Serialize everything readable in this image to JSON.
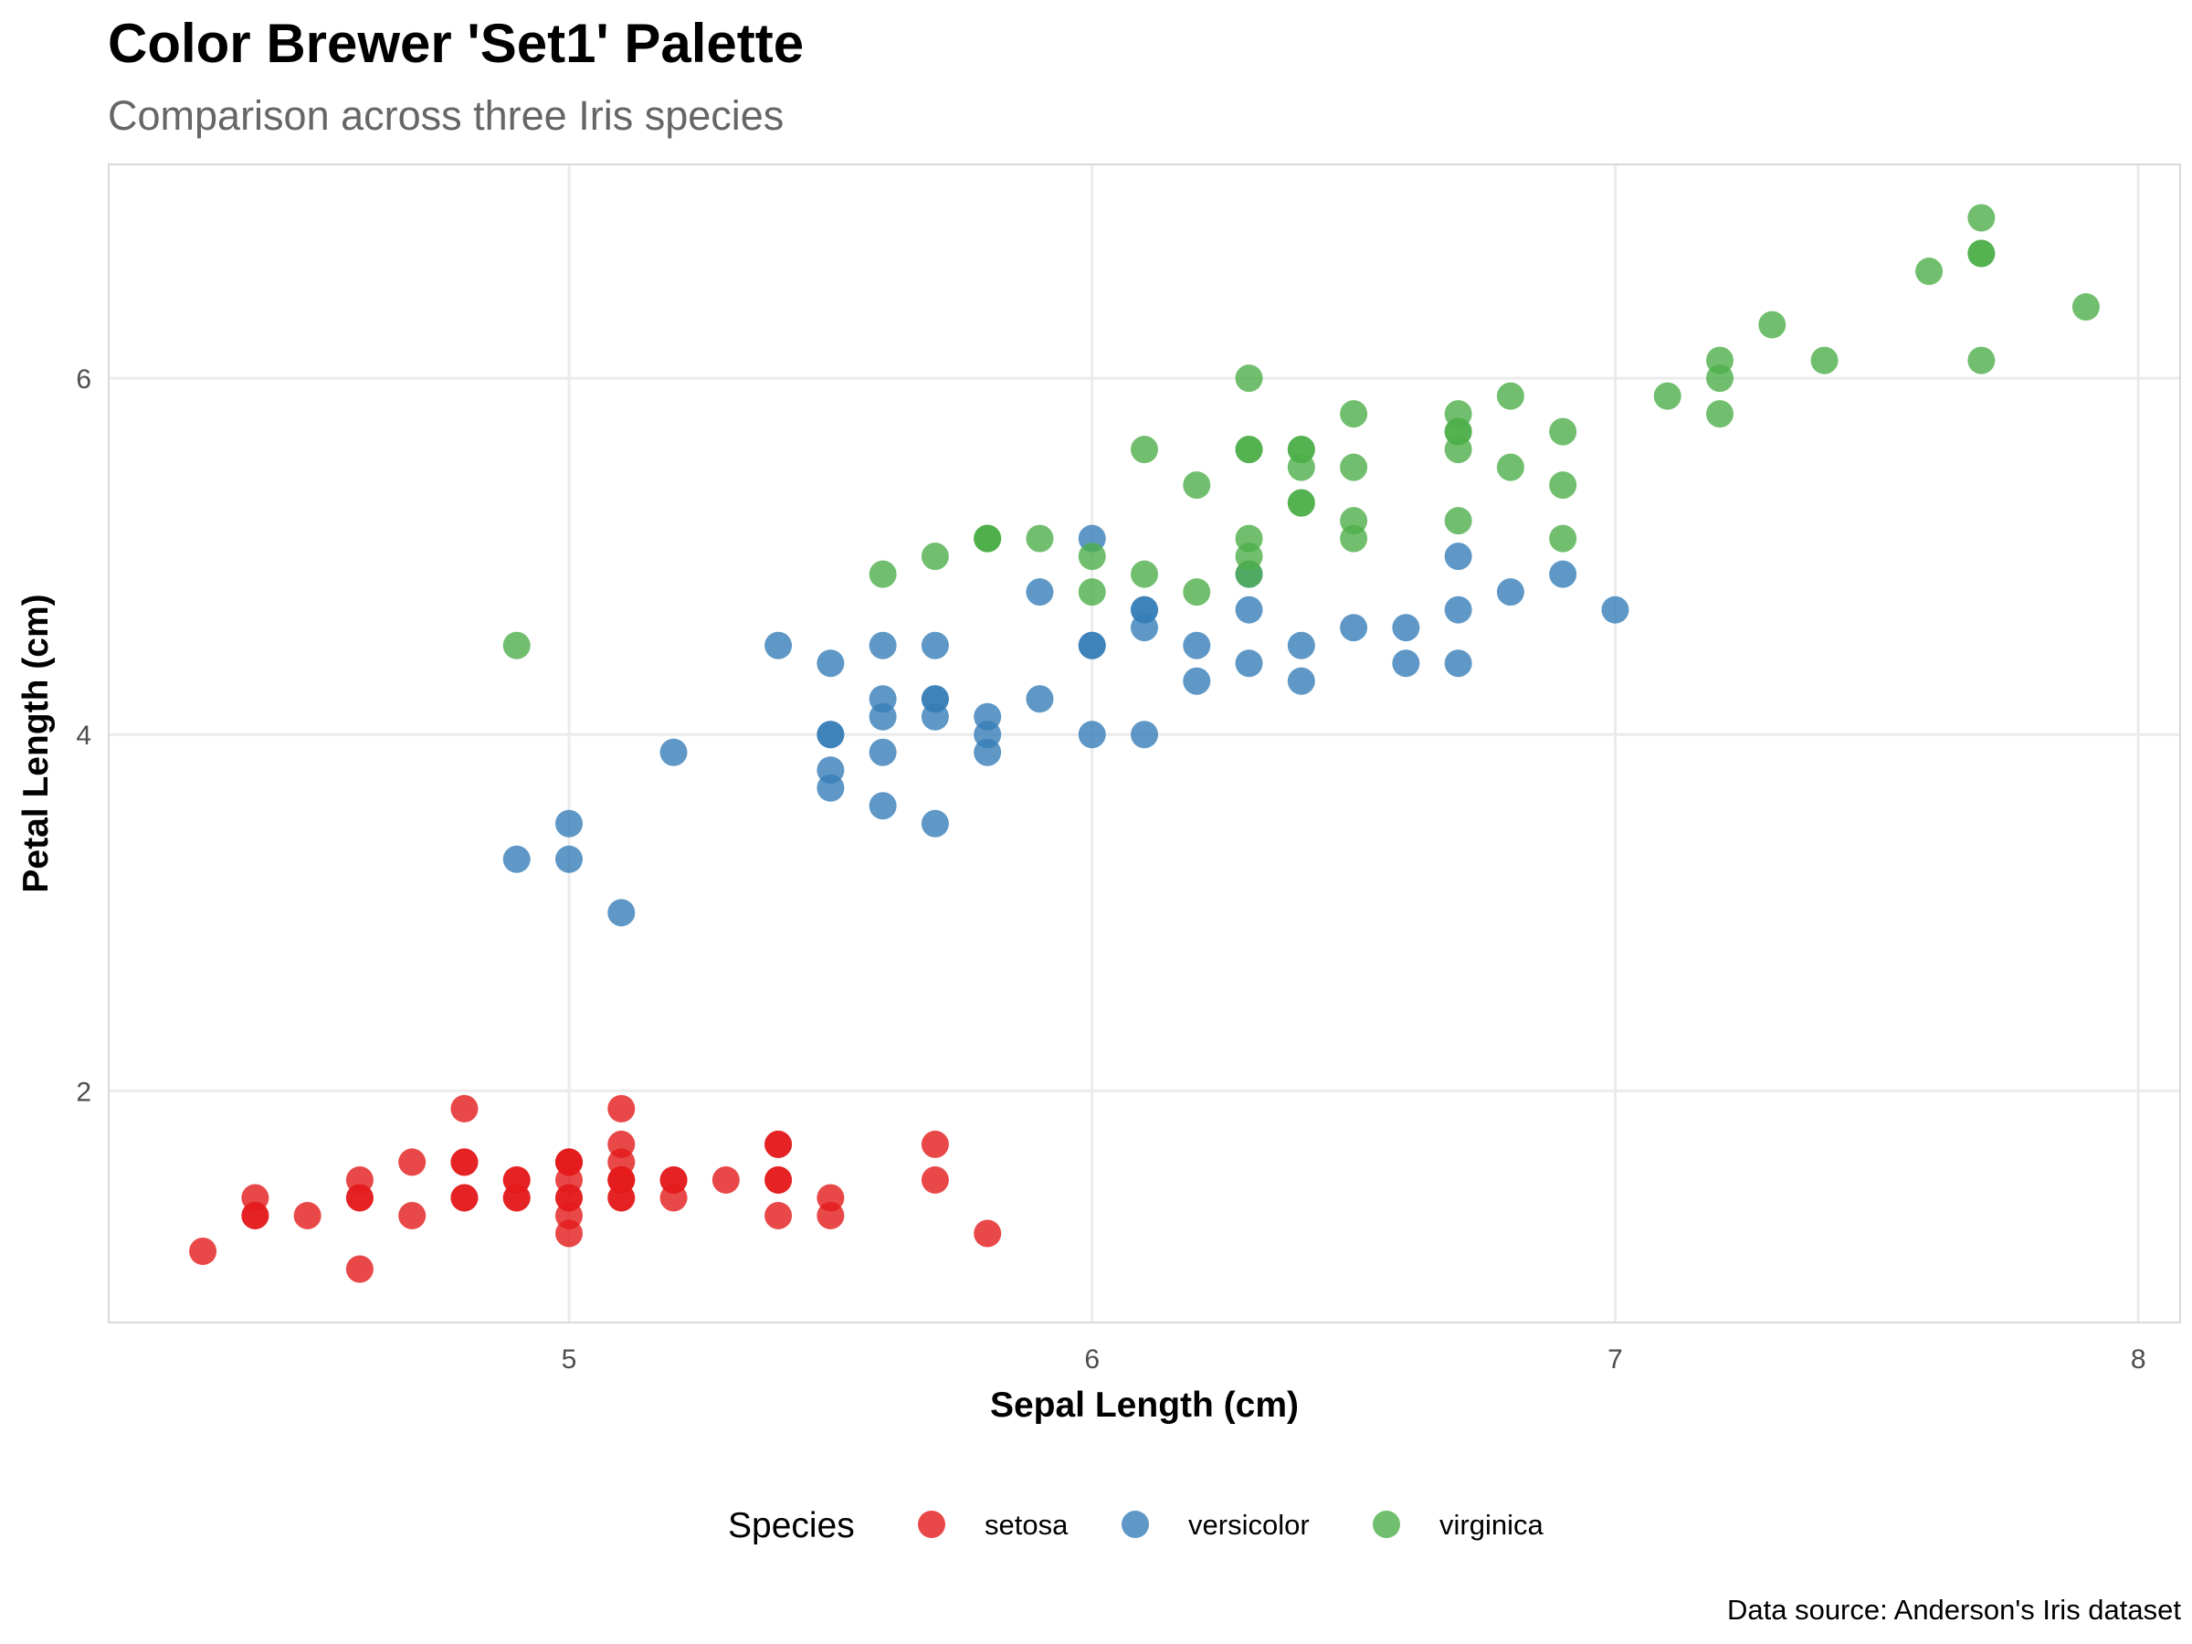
{
  "chart_data": {
    "type": "scatter",
    "title": "Color Brewer 'Set1' Palette",
    "subtitle": "Comparison across three Iris species",
    "xlabel": "Sepal Length (cm)",
    "ylabel": "Petal Length (cm)",
    "caption": "Data source: Anderson's Iris dataset",
    "xlim": [
      4.12,
      8.08
    ],
    "ylim": [
      0.7,
      7.2
    ],
    "x_ticks": [
      5,
      6,
      7,
      8
    ],
    "x_tick_labels": [
      "5",
      "6",
      "7",
      "8"
    ],
    "y_ticks": [
      2,
      4,
      6
    ],
    "y_tick_labels": [
      "2",
      "4",
      "6"
    ],
    "grid": true,
    "legend": {
      "title": "Species",
      "position": "bottom"
    },
    "series": [
      {
        "name": "setosa",
        "color": "#e41a1c",
        "points": [
          [
            5.1,
            1.4
          ],
          [
            4.9,
            1.4
          ],
          [
            4.7,
            1.3
          ],
          [
            4.6,
            1.5
          ],
          [
            5.0,
            1.4
          ],
          [
            5.4,
            1.7
          ],
          [
            4.6,
            1.4
          ],
          [
            5.0,
            1.5
          ],
          [
            4.4,
            1.4
          ],
          [
            4.9,
            1.5
          ],
          [
            5.4,
            1.5
          ],
          [
            4.8,
            1.6
          ],
          [
            4.8,
            1.4
          ],
          [
            4.3,
            1.1
          ],
          [
            5.8,
            1.2
          ],
          [
            5.7,
            1.5
          ],
          [
            5.4,
            1.3
          ],
          [
            5.1,
            1.4
          ],
          [
            5.7,
            1.7
          ],
          [
            5.1,
            1.5
          ],
          [
            5.4,
            1.7
          ],
          [
            5.1,
            1.5
          ],
          [
            4.6,
            1.0
          ],
          [
            5.1,
            1.7
          ],
          [
            4.8,
            1.9
          ],
          [
            5.0,
            1.6
          ],
          [
            5.0,
            1.6
          ],
          [
            5.2,
            1.5
          ],
          [
            5.2,
            1.4
          ],
          [
            4.7,
            1.6
          ],
          [
            4.8,
            1.6
          ],
          [
            5.4,
            1.5
          ],
          [
            5.2,
            1.5
          ],
          [
            5.5,
            1.4
          ],
          [
            4.9,
            1.5
          ],
          [
            5.0,
            1.2
          ],
          [
            5.5,
            1.3
          ],
          [
            4.9,
            1.4
          ],
          [
            4.4,
            1.3
          ],
          [
            5.1,
            1.5
          ],
          [
            5.0,
            1.3
          ],
          [
            4.5,
            1.3
          ],
          [
            4.4,
            1.3
          ],
          [
            5.0,
            1.6
          ],
          [
            5.1,
            1.9
          ],
          [
            4.8,
            1.4
          ],
          [
            5.1,
            1.6
          ],
          [
            4.6,
            1.4
          ],
          [
            5.3,
            1.5
          ],
          [
            5.0,
            1.4
          ]
        ]
      },
      {
        "name": "versicolor",
        "color": "#377eb8",
        "points": [
          [
            7.0,
            4.7
          ],
          [
            6.4,
            4.5
          ],
          [
            6.9,
            4.9
          ],
          [
            5.5,
            4.0
          ],
          [
            6.5,
            4.6
          ],
          [
            5.7,
            4.5
          ],
          [
            6.3,
            4.7
          ],
          [
            4.9,
            3.3
          ],
          [
            6.6,
            4.6
          ],
          [
            5.2,
            3.9
          ],
          [
            5.0,
            3.5
          ],
          [
            5.9,
            4.2
          ],
          [
            6.0,
            4.0
          ],
          [
            6.1,
            4.7
          ],
          [
            5.6,
            3.6
          ],
          [
            6.7,
            4.4
          ],
          [
            5.6,
            4.5
          ],
          [
            5.8,
            4.1
          ],
          [
            6.2,
            4.5
          ],
          [
            5.6,
            3.9
          ],
          [
            5.9,
            4.8
          ],
          [
            6.1,
            4.0
          ],
          [
            6.3,
            4.9
          ],
          [
            6.1,
            4.7
          ],
          [
            6.4,
            4.3
          ],
          [
            6.6,
            4.4
          ],
          [
            6.8,
            4.8
          ],
          [
            6.7,
            5.0
          ],
          [
            6.0,
            4.5
          ],
          [
            5.7,
            3.5
          ],
          [
            5.5,
            3.8
          ],
          [
            5.5,
            3.7
          ],
          [
            5.8,
            3.9
          ],
          [
            6.0,
            5.1
          ],
          [
            5.4,
            4.5
          ],
          [
            6.0,
            4.5
          ],
          [
            6.7,
            4.7
          ],
          [
            6.3,
            4.4
          ],
          [
            5.6,
            4.1
          ],
          [
            5.5,
            4.0
          ],
          [
            5.5,
            4.4
          ],
          [
            6.1,
            4.6
          ],
          [
            5.8,
            4.0
          ],
          [
            5.0,
            3.3
          ],
          [
            5.6,
            4.2
          ],
          [
            5.7,
            4.2
          ],
          [
            5.7,
            4.2
          ],
          [
            6.2,
            4.3
          ],
          [
            5.1,
            3.0
          ],
          [
            5.7,
            4.1
          ]
        ]
      },
      {
        "name": "virginica",
        "color": "#4daf4a",
        "points": [
          [
            6.3,
            6.0
          ],
          [
            5.8,
            5.1
          ],
          [
            7.1,
            5.9
          ],
          [
            6.3,
            5.6
          ],
          [
            6.5,
            5.8
          ],
          [
            7.6,
            6.6
          ],
          [
            4.9,
            4.5
          ],
          [
            7.3,
            6.3
          ],
          [
            6.7,
            5.8
          ],
          [
            7.2,
            6.1
          ],
          [
            6.5,
            5.1
          ],
          [
            6.4,
            5.3
          ],
          [
            6.8,
            5.5
          ],
          [
            5.7,
            5.0
          ],
          [
            5.8,
            5.1
          ],
          [
            6.4,
            5.3
          ],
          [
            6.5,
            5.5
          ],
          [
            7.7,
            6.7
          ],
          [
            7.7,
            6.9
          ],
          [
            6.0,
            5.0
          ],
          [
            6.9,
            5.7
          ],
          [
            5.6,
            4.9
          ],
          [
            7.7,
            6.7
          ],
          [
            6.3,
            4.9
          ],
          [
            6.7,
            5.7
          ],
          [
            7.2,
            6.0
          ],
          [
            6.2,
            4.8
          ],
          [
            6.1,
            4.9
          ],
          [
            6.4,
            5.6
          ],
          [
            7.2,
            5.8
          ],
          [
            7.4,
            6.1
          ],
          [
            7.9,
            6.4
          ],
          [
            6.4,
            5.6
          ],
          [
            6.3,
            5.1
          ],
          [
            6.1,
            5.6
          ],
          [
            7.7,
            6.1
          ],
          [
            6.3,
            5.6
          ],
          [
            6.4,
            5.5
          ],
          [
            6.0,
            4.8
          ],
          [
            6.9,
            5.4
          ],
          [
            6.7,
            5.6
          ],
          [
            6.9,
            5.1
          ],
          [
            5.8,
            5.1
          ],
          [
            6.8,
            5.9
          ],
          [
            6.7,
            5.7
          ],
          [
            6.7,
            5.2
          ],
          [
            6.3,
            5.0
          ],
          [
            6.5,
            5.2
          ],
          [
            6.2,
            5.4
          ],
          [
            5.9,
            5.1
          ]
        ]
      }
    ]
  }
}
